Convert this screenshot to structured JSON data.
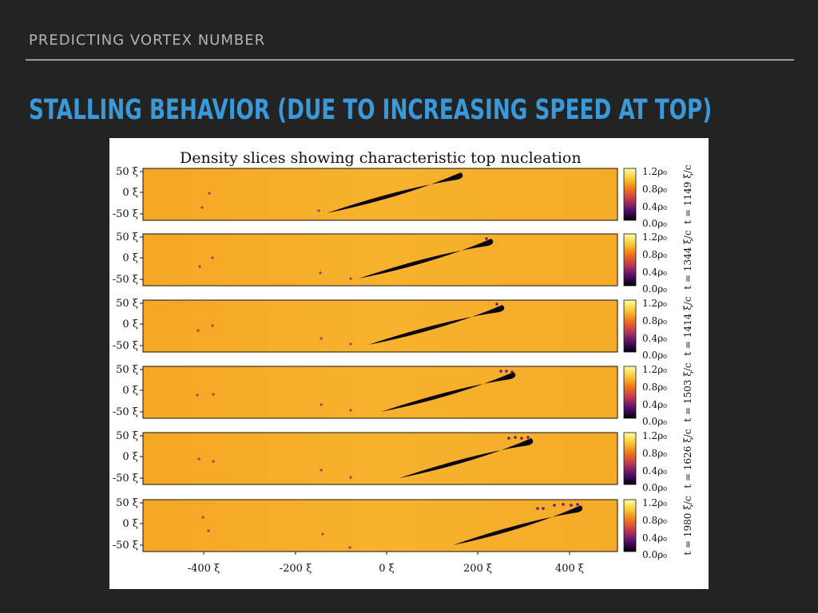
{
  "slide": {
    "section_label": "PREDICTING VORTEX NUMBER",
    "title": "STALLING BEHAVIOR (DUE TO INCREASING SPEED AT TOP)"
  },
  "figure": {
    "title": "Density slices showing characteristic top nucleation",
    "y_tick_labels": [
      "50 ξ",
      "0 ξ",
      "-50 ξ"
    ],
    "x_tick_labels": [
      "-400 ξ",
      "-200 ξ",
      "0 ξ",
      "200 ξ",
      "400 ξ"
    ],
    "colorbar_labels": [
      "1.2ρ₀",
      "0.8ρ₀",
      "0.4ρ₀",
      "0.0ρ₀"
    ],
    "colors": {
      "background_field": "#f6b02a",
      "airfoil": "#0a0410",
      "vortex": "#b3365f"
    },
    "panels": [
      {
        "time_label": "t = 1149 ξ/c"
      },
      {
        "time_label": "t = 1344 ξ/c"
      },
      {
        "time_label": "t = 1414 ξ/c"
      },
      {
        "time_label": "t = 1503 ξ/c"
      },
      {
        "time_label": "t = 1626 ξ/c"
      },
      {
        "time_label": "t = 1980 ξ/c"
      }
    ]
  }
}
